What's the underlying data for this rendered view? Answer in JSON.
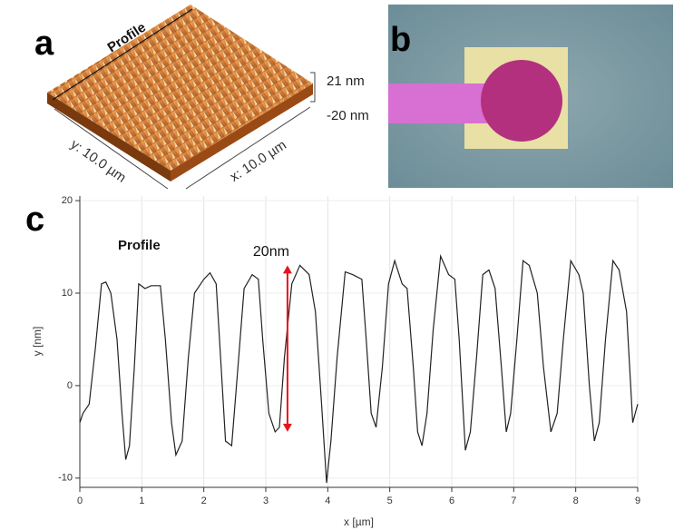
{
  "panels": {
    "a": {
      "label": "a",
      "profile_label": "Profile",
      "scale_max": "21 nm",
      "scale_min": "-20 nm",
      "y_axis": "y: 10.0 µm",
      "x_axis": "x: 10.0 µm"
    },
    "b": {
      "label": "b"
    },
    "c": {
      "label": "c"
    }
  },
  "chart_data": {
    "type": "line",
    "xlabel": "x [µm]",
    "ylabel": "y [nm]",
    "annotation": "Profile",
    "arrow": {
      "label": "20nm",
      "color": "#e8141c",
      "x": 3.35,
      "y": [
        -5,
        13
      ]
    },
    "xlim": [
      0,
      9
    ],
    "ylim": [
      -11,
      20.5
    ],
    "xticks": [
      0,
      1,
      2,
      3,
      4,
      5,
      6,
      7,
      8,
      9
    ],
    "yticks": [
      -10,
      0,
      10,
      20
    ],
    "grid": true,
    "x": [
      0,
      0.05,
      0.15,
      0.25,
      0.35,
      0.42,
      0.5,
      0.6,
      0.68,
      0.74,
      0.8,
      0.88,
      0.95,
      1.05,
      1.15,
      1.3,
      1.38,
      1.48,
      1.55,
      1.65,
      1.75,
      1.85,
      2.0,
      2.1,
      2.2,
      2.28,
      2.35,
      2.45,
      2.55,
      2.65,
      2.78,
      2.88,
      2.95,
      3.05,
      3.15,
      3.22,
      3.3,
      3.42,
      3.55,
      3.7,
      3.8,
      3.9,
      3.98,
      4.05,
      4.15,
      4.28,
      4.4,
      4.55,
      4.62,
      4.7,
      4.78,
      4.88,
      4.98,
      5.08,
      5.2,
      5.28,
      5.38,
      5.45,
      5.52,
      5.6,
      5.7,
      5.82,
      5.95,
      6.05,
      6.12,
      6.22,
      6.3,
      6.4,
      6.5,
      6.6,
      6.7,
      6.8,
      6.88,
      6.95,
      7.05,
      7.15,
      7.25,
      7.38,
      7.48,
      7.6,
      7.7,
      7.8,
      7.92,
      8.05,
      8.12,
      8.22,
      8.3,
      8.38,
      8.48,
      8.6,
      8.7,
      8.82,
      8.92,
      8.98,
      9.0
    ],
    "series": [
      {
        "name": "Profile",
        "color": "#222222",
        "values": [
          -4,
          -3,
          -2,
          4,
          11,
          11.2,
          10,
          5,
          -3,
          -8,
          -6.5,
          2,
          11,
          10.5,
          10.8,
          10.8,
          5,
          -4,
          -7.5,
          -6,
          3,
          10,
          11.5,
          12.2,
          11,
          2,
          -6,
          -6.5,
          2,
          10.5,
          12,
          11.5,
          5,
          -3,
          -5,
          -4.5,
          3,
          11,
          13,
          12,
          8,
          -2,
          -10.5,
          -6,
          3,
          12.3,
          12,
          11.5,
          5,
          -3,
          -4.5,
          2,
          11,
          13.5,
          11,
          10.5,
          2,
          -5,
          -6.5,
          -3,
          6,
          14,
          12,
          11.5,
          5,
          -7,
          -5,
          3,
          12,
          12.5,
          10.5,
          2,
          -5,
          -3,
          5,
          13.5,
          13,
          10,
          2,
          -5,
          -3,
          5,
          13.5,
          12,
          10,
          0,
          -6,
          -4,
          5,
          13.5,
          12.5,
          8,
          -4,
          -2.5,
          -2
        ]
      }
    ]
  }
}
